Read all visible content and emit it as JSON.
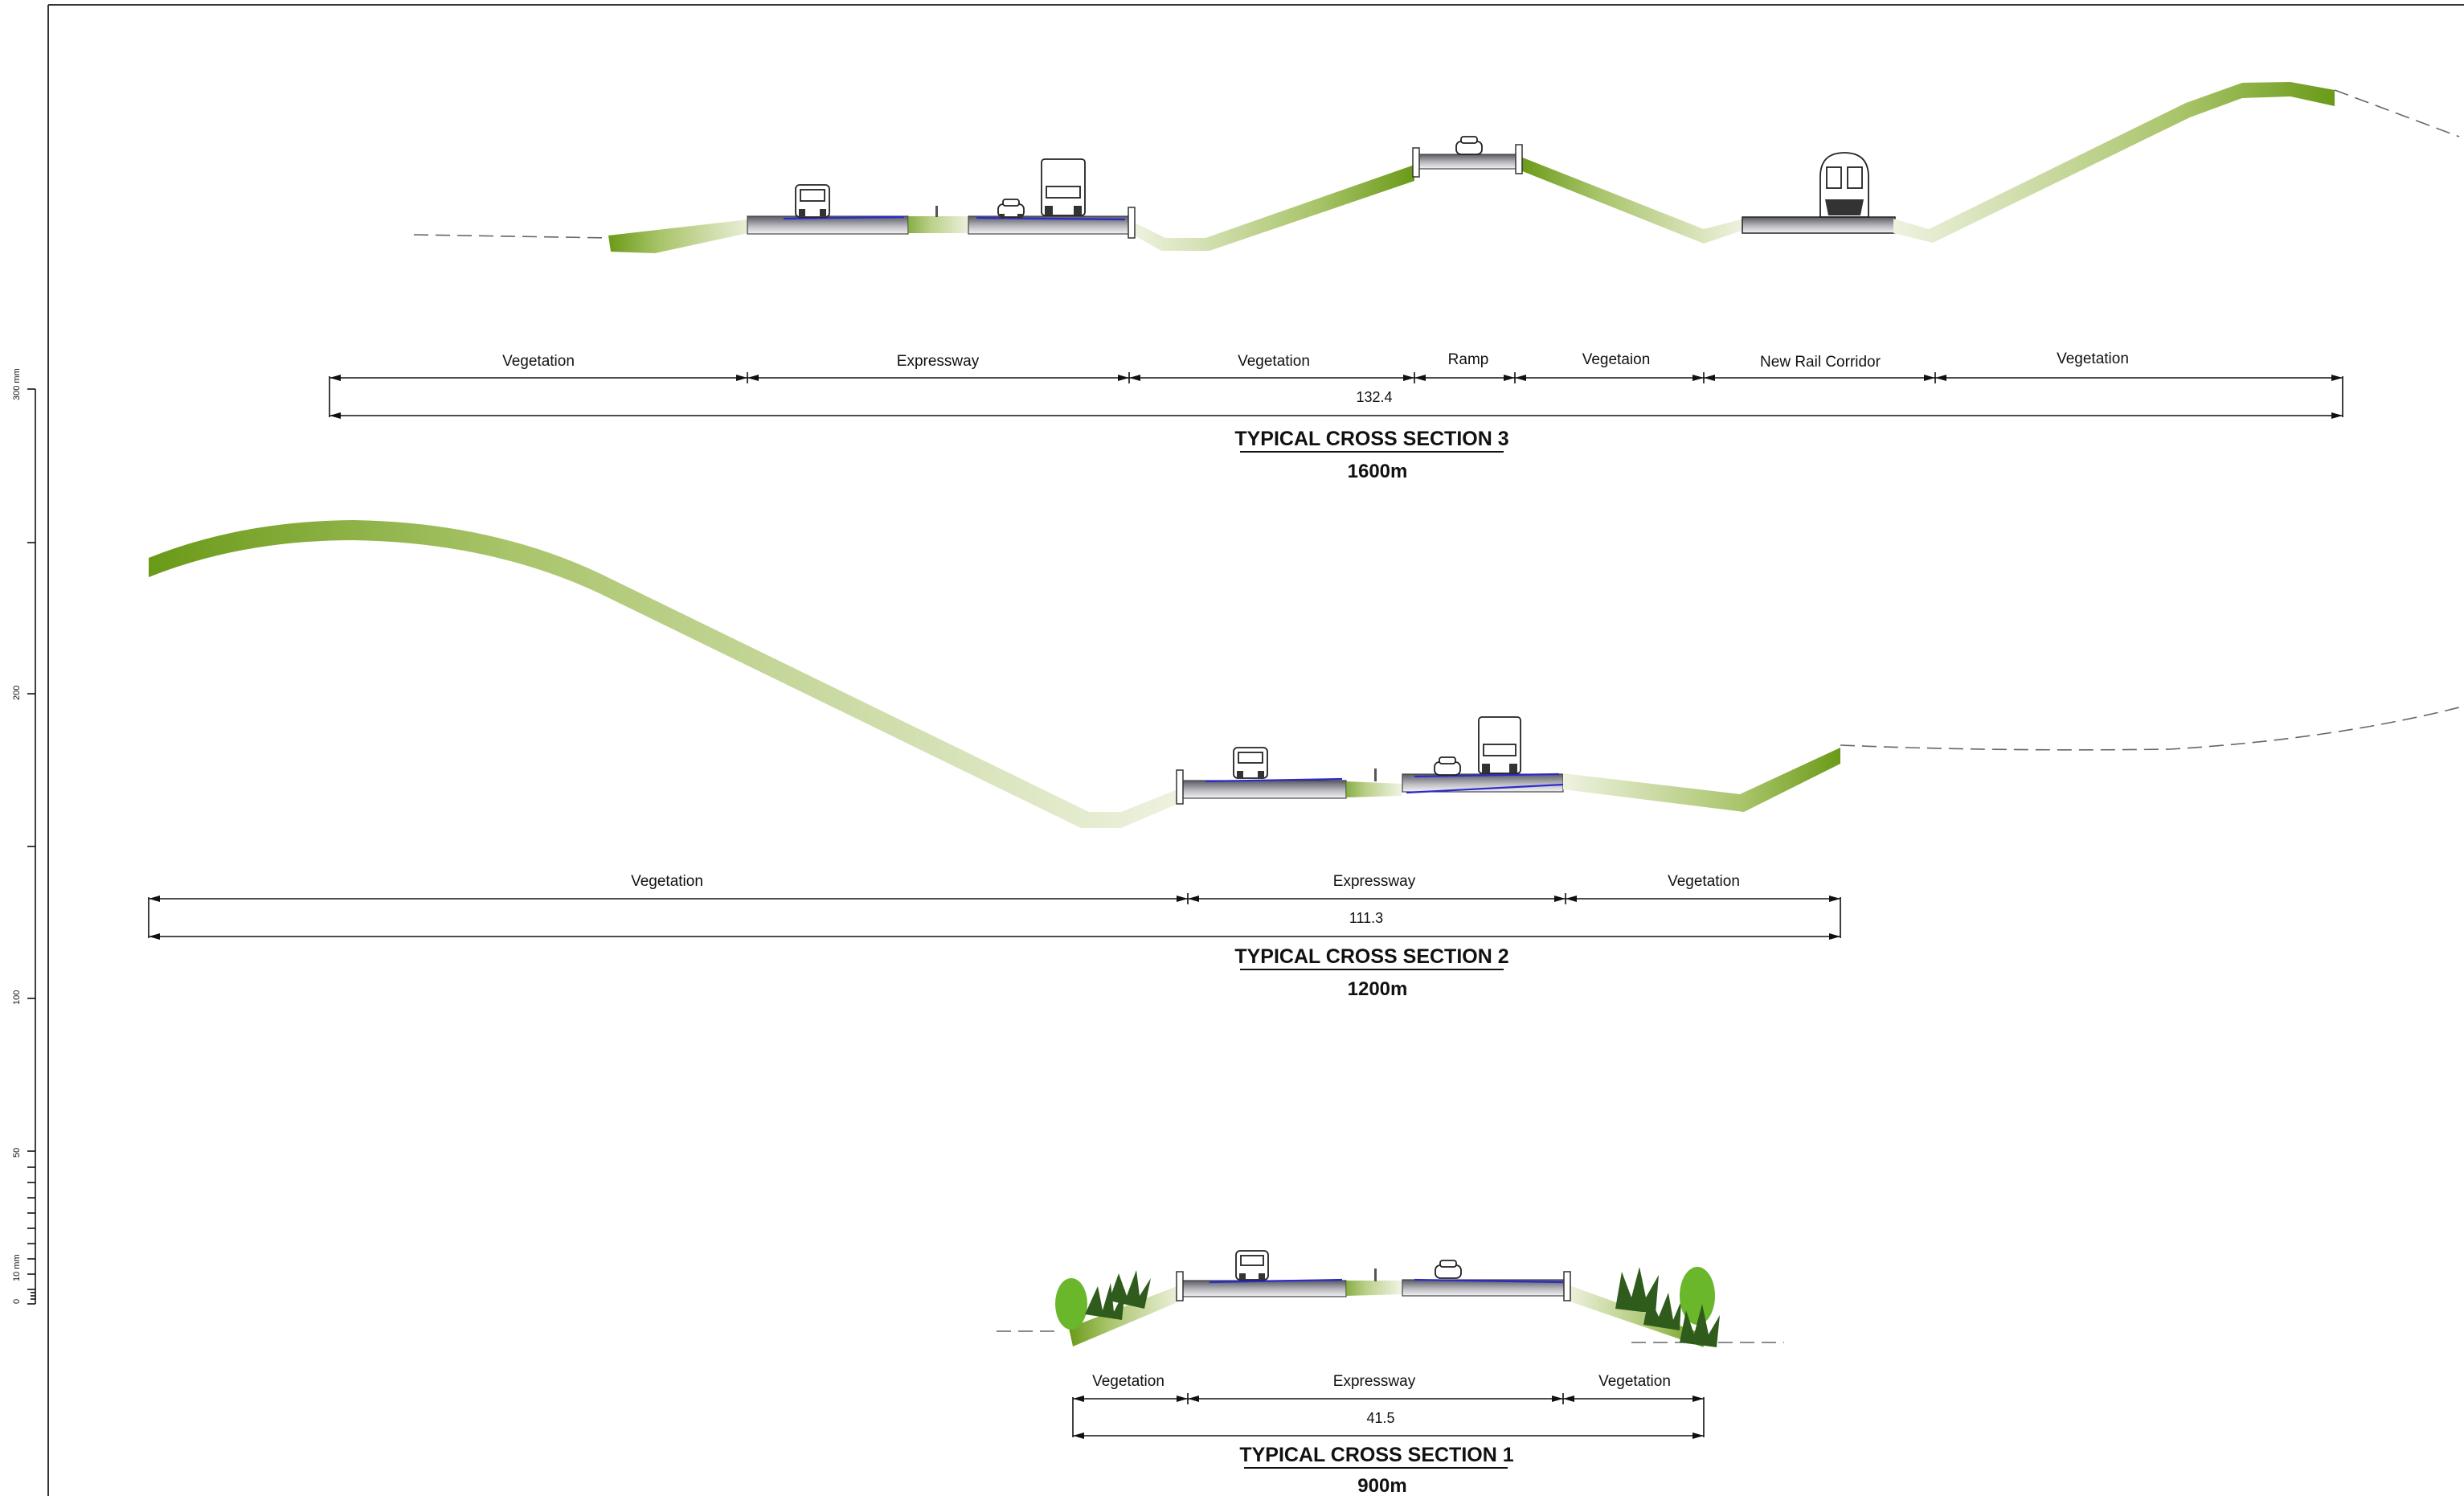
{
  "scale_bar": {
    "ticks": [
      "0",
      "10 mm",
      "50",
      "100",
      "200",
      "300 mm"
    ]
  },
  "sections": [
    {
      "title": "TYPICAL  CROSS SECTION 3",
      "chainage": "1600m",
      "total_width": "132.4",
      "segments": [
        "Vegetation",
        "Expressway",
        "Vegetation",
        "Ramp",
        "Vegetaion",
        "New Rail Corridor",
        "Vegetation"
      ]
    },
    {
      "title": "TYPICAL  CROSS SECTION 2",
      "chainage": "1200m",
      "total_width": "111.3",
      "segments": [
        "Vegetation",
        "Expressway",
        "Vegetation"
      ]
    },
    {
      "title": "TYPICAL  CROSS SECTION 1",
      "chainage": "900m",
      "total_width": "41.5",
      "segments": [
        "Vegetation",
        "Expressway",
        "Vegetation"
      ]
    }
  ],
  "colors": {
    "vegetation_dark": "#6a9a18",
    "vegetation_light": "#eef2e0",
    "roadway": "#8f8f95",
    "lane_marking": "#2a2ad0"
  }
}
